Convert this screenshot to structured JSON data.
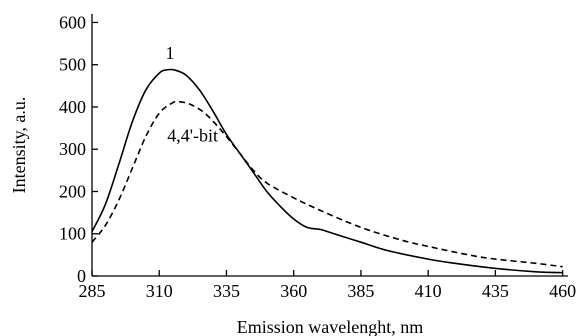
{
  "chart_data": {
    "type": "line",
    "title": "",
    "xlabel": "Emission wavelenght, nm",
    "ylabel": "Intensity, a.u.",
    "xlim": [
      285,
      462
    ],
    "ylim": [
      0,
      620
    ],
    "x_ticks": [
      285,
      310,
      335,
      360,
      385,
      410,
      435,
      460
    ],
    "y_ticks": [
      0,
      100,
      200,
      300,
      400,
      500,
      600
    ],
    "grid": false,
    "legend": "none",
    "series": [
      {
        "name": "1",
        "style": "solid",
        "color": "#000000",
        "x": [
          285,
          290,
          295,
          300,
          305,
          310,
          313,
          316,
          320,
          325,
          330,
          335,
          340,
          345,
          350,
          355,
          360,
          365,
          370,
          375,
          385,
          395,
          410,
          420,
          435,
          450,
          460
        ],
        "y": [
          105,
          170,
          265,
          365,
          440,
          480,
          488,
          487,
          475,
          440,
          390,
          335,
          290,
          245,
          200,
          165,
          135,
          115,
          110,
          100,
          80,
          60,
          40,
          30,
          18,
          10,
          8
        ]
      },
      {
        "name": "4,4'-bit",
        "style": "dashed",
        "color": "#000000",
        "x": [
          285,
          290,
          295,
          300,
          305,
          310,
          315,
          318,
          322,
          327,
          333,
          340,
          345,
          350,
          360,
          370,
          385,
          400,
          410,
          425,
          435,
          450,
          460
        ],
        "y": [
          80,
          120,
          180,
          255,
          330,
          385,
          410,
          412,
          405,
          385,
          345,
          290,
          250,
          220,
          185,
          155,
          115,
          85,
          70,
          50,
          40,
          30,
          22
        ]
      }
    ],
    "annotations": [
      {
        "text": "1",
        "x": 314,
        "y": 528
      },
      {
        "text": "4,4'-bit",
        "x": 313,
        "y": 333
      }
    ]
  }
}
